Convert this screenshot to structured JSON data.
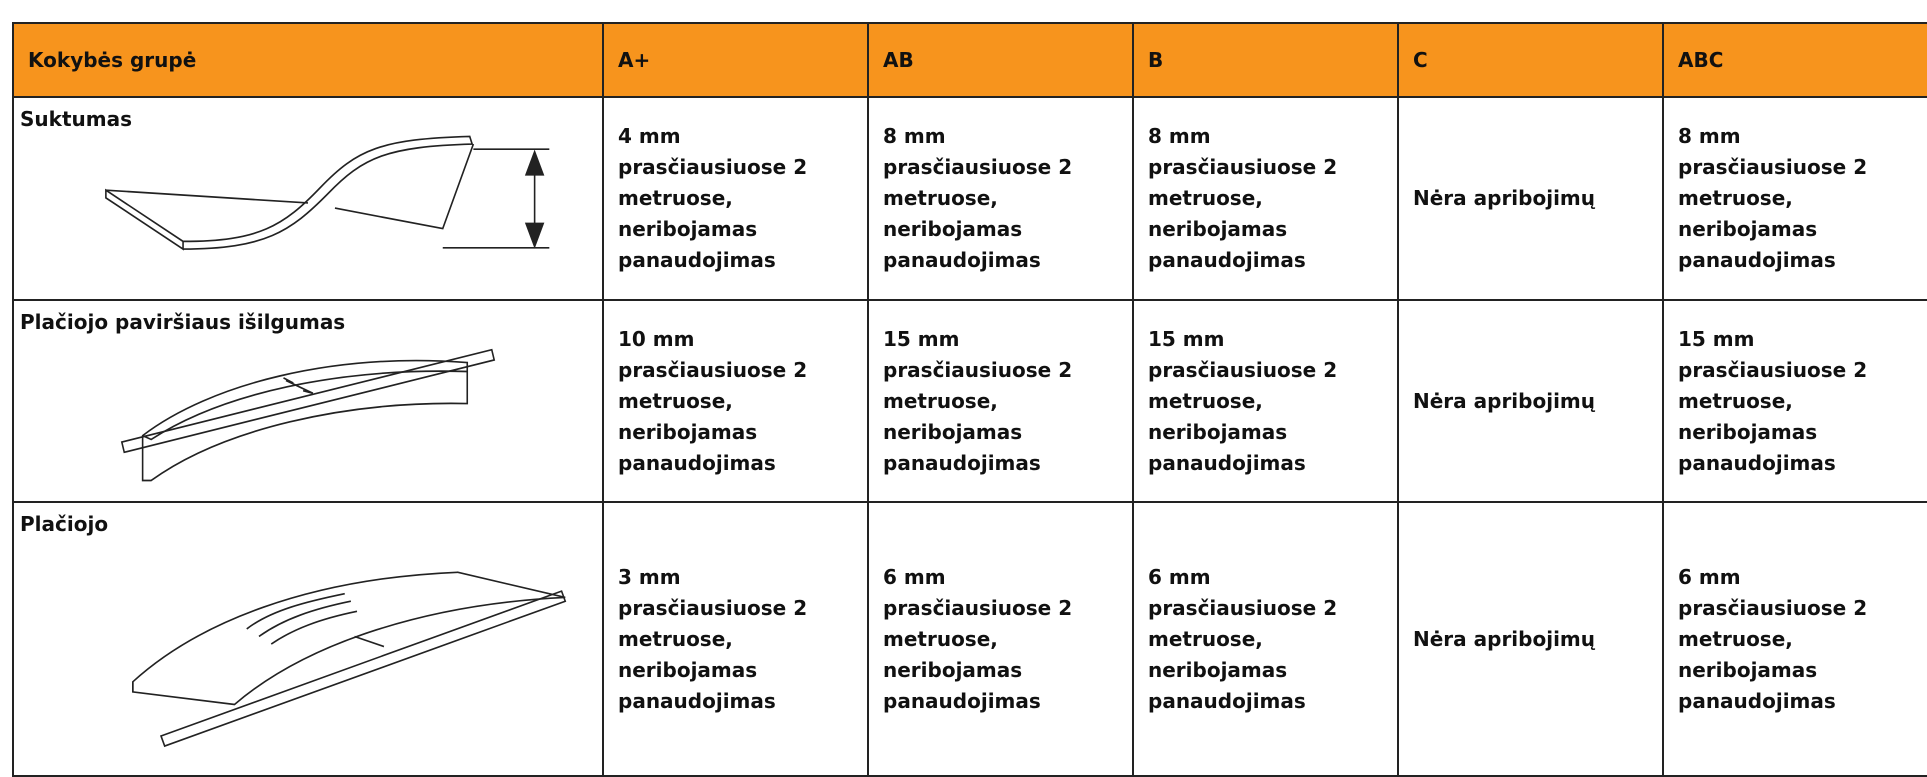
{
  "table": {
    "header": [
      "Kokybės grupė",
      "A+",
      "AB",
      "B",
      "C",
      "ABC"
    ],
    "rows": [
      {
        "label": "Suktumas",
        "cells": [
          "4 mm\nprasčiausiuose 2\nmetruose,\nneribojamas\npanaudojimas",
          "8 mm\nprasčiausiuose 2\nmetruose,\nneribojamas\npanaudojimas",
          "8 mm\nprasčiausiuose 2\nmetruose,\nneribojamas\npanaudojimas",
          "Nėra apribojimų",
          "8 mm\nprasčiausiuose 2\nmetruose,\nneribojamas\npanaudojimas"
        ]
      },
      {
        "label": "Plačiojo paviršiaus išilgumas",
        "cells": [
          "10 mm\nprasčiausiuose 2\nmetruose,\nneribojamas\npanaudojimas",
          "15 mm\nprasčiausiuose 2\nmetruose,\nneribojamas\npanaudojimas",
          "15 mm\nprasčiausiuose 2\nmetruose,\nneribojamas\npanaudojimas",
          "Nėra apribojimų",
          "15 mm\nprasčiausiuose 2\nmetruose,\nneribojamas\npanaudojimas"
        ]
      },
      {
        "label": "Plačiojo",
        "cells": [
          "3 mm\nprasčiausiuose 2\nmetruose,\nneribojamas\npanaudojimas",
          "6 mm\nprasčiausiuose 2\nmetruose,\nneribojamas\npanaudojimas",
          "6 mm\nprasčiausiuose 2\nmetruose,\nneribojamas\npanaudojimas",
          "Nėra apribojimų",
          "6 mm\nprasčiausiuose 2\nmetruose,\nneribojamas\npanaudojimas"
        ]
      }
    ]
  }
}
